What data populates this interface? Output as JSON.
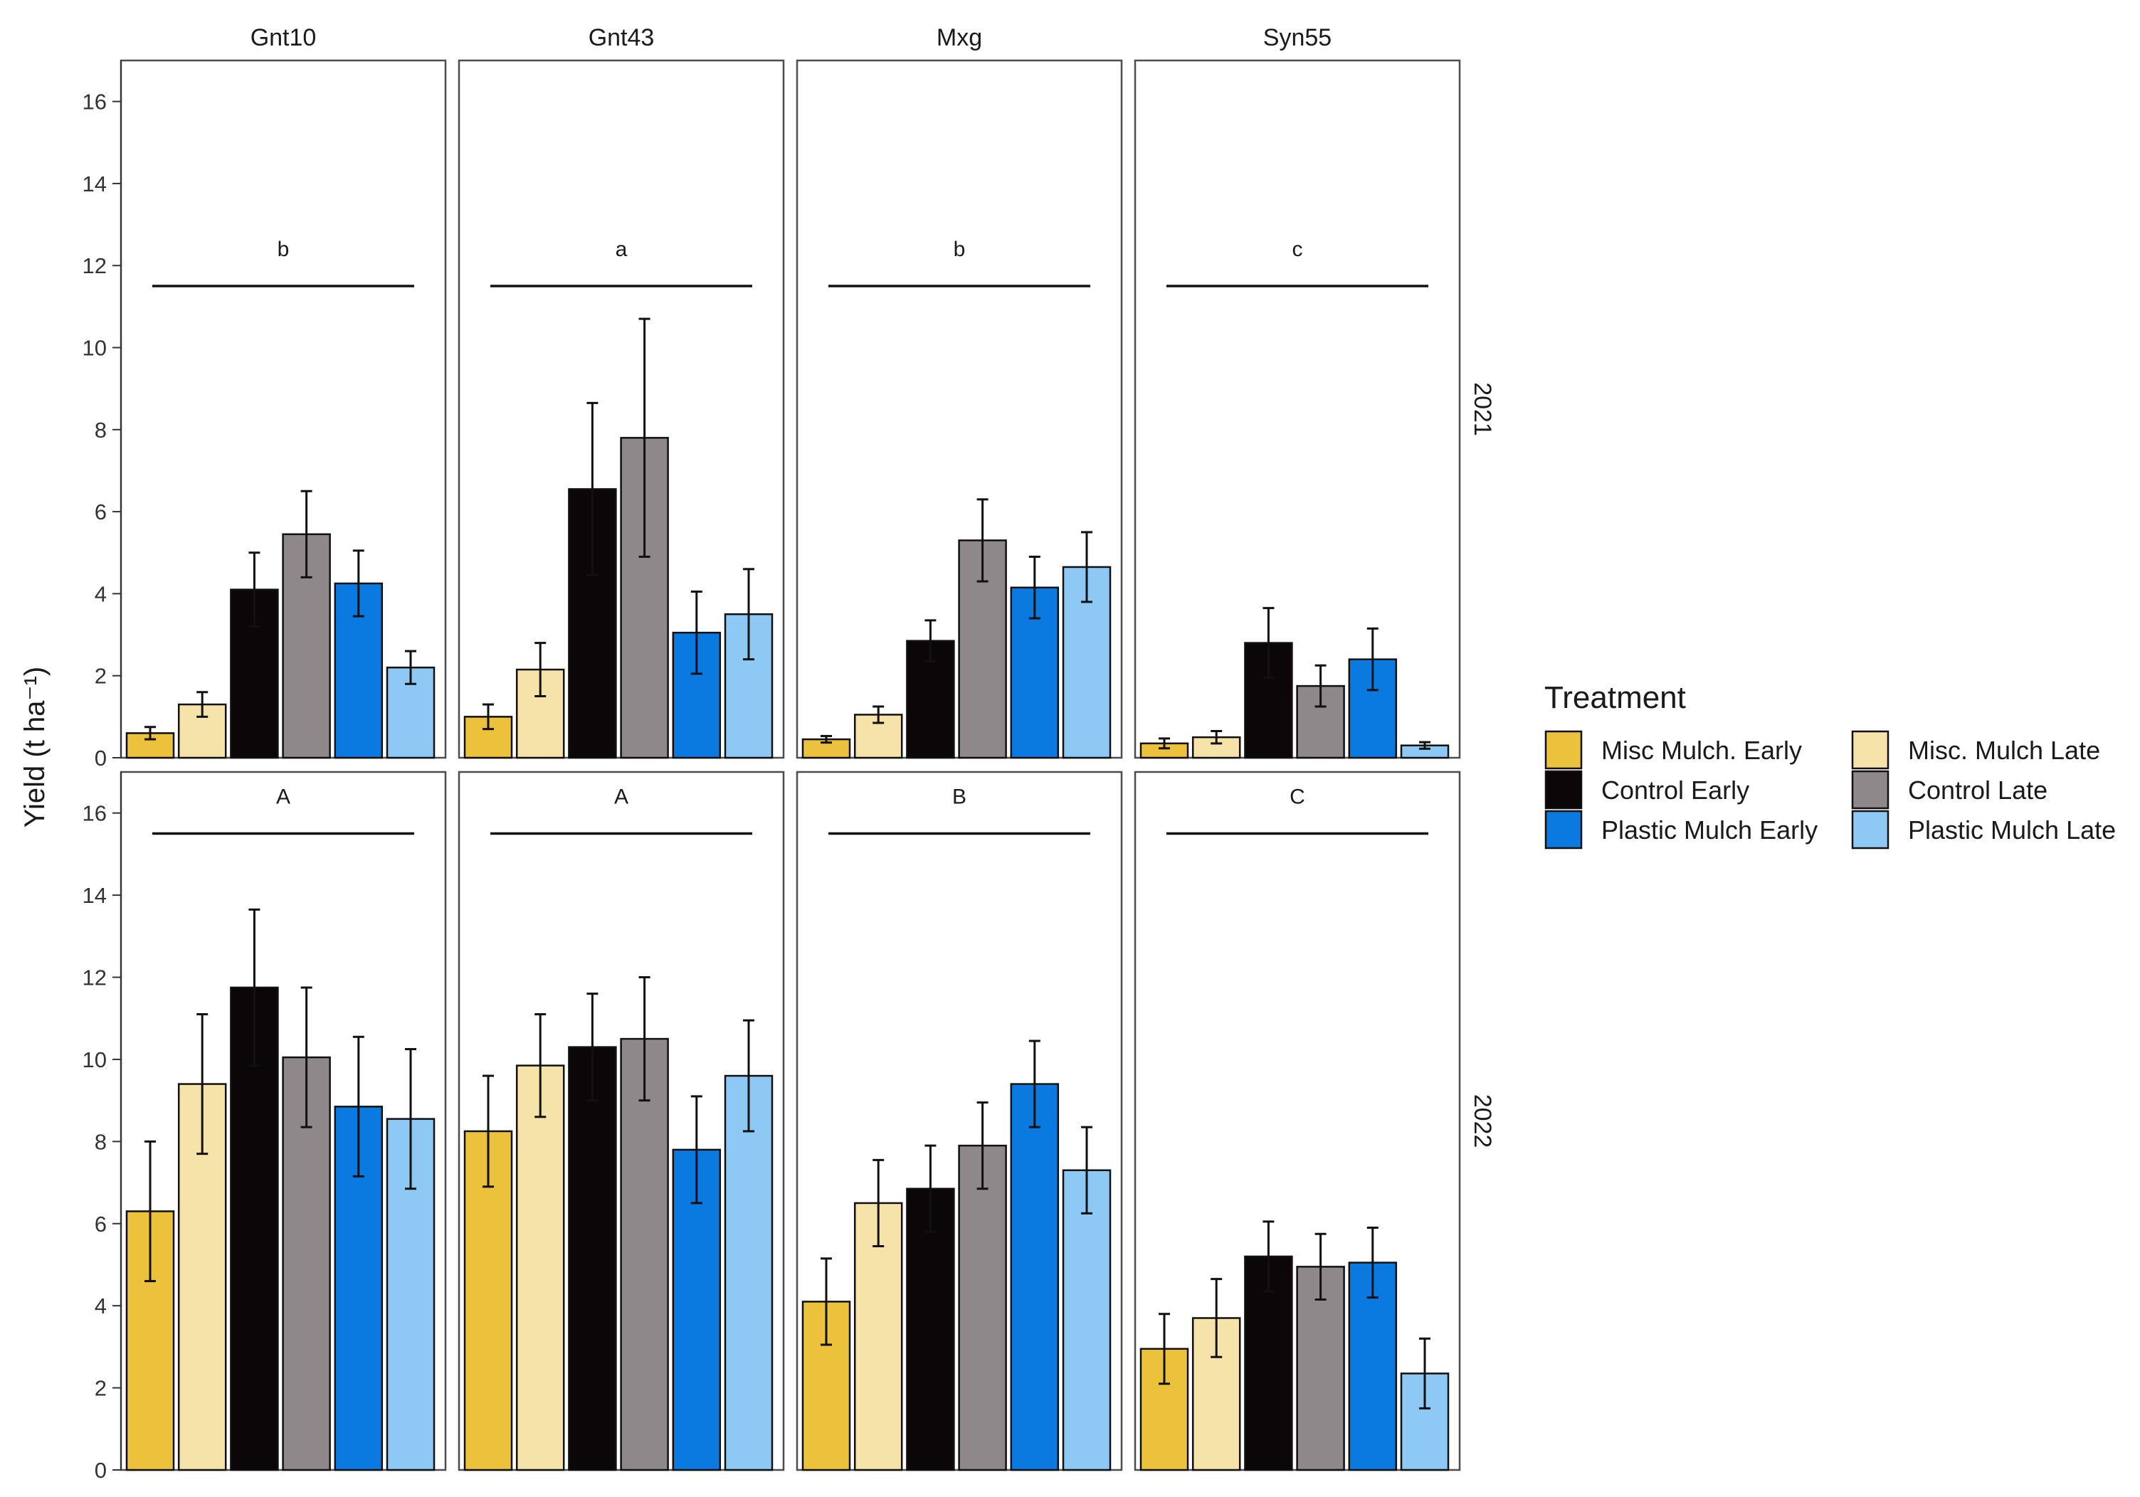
{
  "chart_data": {
    "type": "bar",
    "ylabel": "Yield (t ha⁻¹)",
    "ylim": [
      0,
      17
    ],
    "yticks": [
      0,
      2,
      4,
      6,
      8,
      10,
      12,
      14,
      16
    ],
    "grid": false,
    "facet_columns": [
      "Gnt10",
      "Gnt43",
      "Mxg",
      "Syn55"
    ],
    "facet_rows": [
      "2021",
      "2022"
    ],
    "legend": {
      "title": "Treatment",
      "placement": "right",
      "entries": [
        {
          "name": "Misc Mulch. Early",
          "color": "#ECC13C"
        },
        {
          "name": "Misc. Mulch Late",
          "color": "#F6E3AA"
        },
        {
          "name": "Control Early",
          "color": "#0B0607"
        },
        {
          "name": "Control Late",
          "color": "#8E888A"
        },
        {
          "name": "Plastic Mulch Early",
          "color": "#0A7AE0"
        },
        {
          "name": "Plastic Mulch Late",
          "color": "#8EC8F5"
        }
      ]
    },
    "bar_order": [
      "Misc Mulch. Early",
      "Misc. Mulch Late",
      "Control Early",
      "Control Late",
      "Plastic Mulch Early",
      "Plastic Mulch Late"
    ],
    "panels": [
      {
        "column": "Gnt10",
        "row": "2021",
        "letter": "b",
        "letter_line_y": 11.5,
        "values": [
          0.6,
          1.3,
          4.1,
          5.45,
          4.25,
          2.2
        ],
        "errors": [
          0.15,
          0.3,
          0.9,
          1.05,
          0.8,
          0.4
        ]
      },
      {
        "column": "Gnt43",
        "row": "2021",
        "letter": "a",
        "letter_line_y": 11.5,
        "values": [
          1.0,
          2.15,
          6.55,
          7.8,
          3.05,
          3.5
        ],
        "errors": [
          0.3,
          0.65,
          2.1,
          2.9,
          1.0,
          1.1
        ]
      },
      {
        "column": "Mxg",
        "row": "2021",
        "letter": "b",
        "letter_line_y": 11.5,
        "values": [
          0.45,
          1.05,
          2.85,
          5.3,
          4.15,
          4.65
        ],
        "errors": [
          0.08,
          0.2,
          0.5,
          1.0,
          0.75,
          0.85
        ]
      },
      {
        "column": "Syn55",
        "row": "2021",
        "letter": "c",
        "letter_line_y": 11.5,
        "values": [
          0.35,
          0.5,
          2.8,
          1.75,
          2.4,
          0.3
        ],
        "errors": [
          0.12,
          0.15,
          0.85,
          0.5,
          0.75,
          0.08
        ]
      },
      {
        "column": "Gnt10",
        "row": "2022",
        "letter": "A",
        "letter_line_y": 15.5,
        "values": [
          6.3,
          9.4,
          11.75,
          10.05,
          8.85,
          8.55
        ],
        "errors": [
          1.7,
          1.7,
          1.9,
          1.7,
          1.7,
          1.7
        ]
      },
      {
        "column": "Gnt43",
        "row": "2022",
        "letter": "A",
        "letter_line_y": 15.5,
        "values": [
          8.25,
          9.85,
          10.3,
          10.5,
          7.8,
          9.6
        ],
        "errors": [
          1.35,
          1.25,
          1.3,
          1.5,
          1.3,
          1.35
        ]
      },
      {
        "column": "Mxg",
        "row": "2022",
        "letter": "B",
        "letter_line_y": 15.5,
        "values": [
          4.1,
          6.5,
          6.85,
          7.9,
          9.4,
          7.3
        ],
        "errors": [
          1.05,
          1.05,
          1.05,
          1.05,
          1.05,
          1.05
        ]
      },
      {
        "column": "Syn55",
        "row": "2022",
        "letter": "C",
        "letter_line_y": 15.5,
        "values": [
          2.95,
          3.7,
          5.2,
          4.95,
          5.05,
          2.35
        ],
        "errors": [
          0.85,
          0.95,
          0.85,
          0.8,
          0.85,
          0.85
        ]
      }
    ]
  }
}
